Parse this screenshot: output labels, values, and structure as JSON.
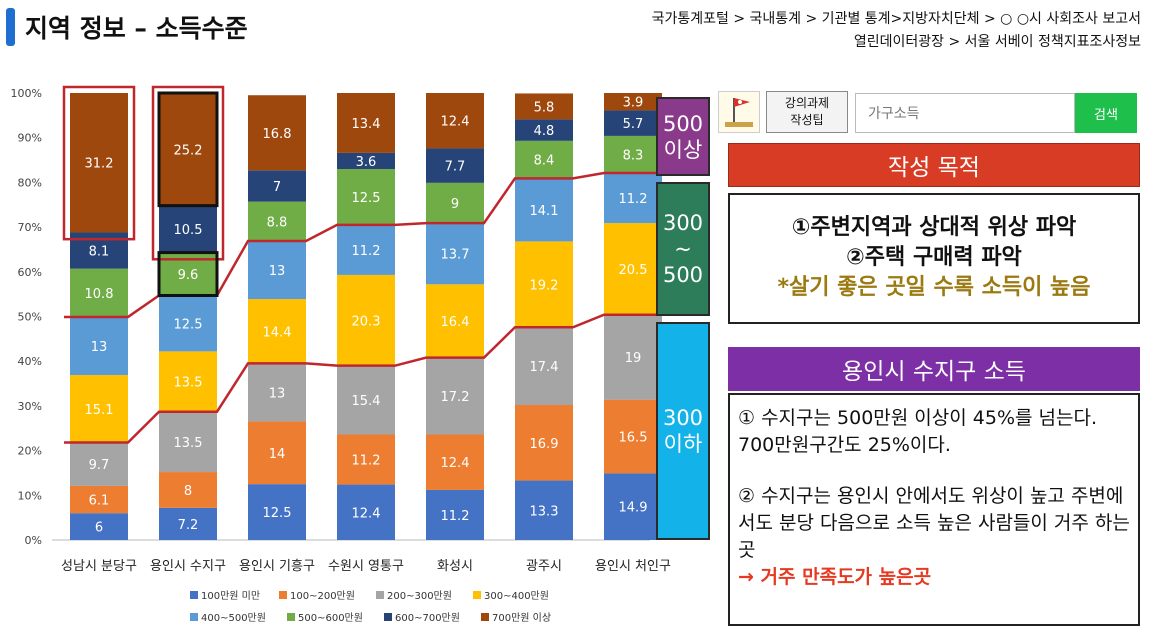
{
  "header": {
    "title": "지역 정보 – 소득수준",
    "breadcrumb_1": "국가통계포털 > 국내통계 > 기관별 통계>지방자치단체 > ○ ○시 사회조사 보고서",
    "breadcrumb_2": "열린데이터광장 > 서울 서베이 정책지표조사정보"
  },
  "side_labels": {
    "upper": [
      "500",
      "이상"
    ],
    "middle": [
      "300",
      "~",
      "500"
    ],
    "lower": [
      "300",
      "이하"
    ]
  },
  "toolbar": {
    "tip_line1": "강의과제",
    "tip_line2": "작성팁",
    "search_placeholder": "가구소득",
    "search_button": "검색"
  },
  "purpose": {
    "header": "작성 목적",
    "line1": "①주변지역과 상대적 위상 파악",
    "line2": "②주택 구매력 파악",
    "line3": "*살기 좋은 곳일 수록 소득이 높음"
  },
  "suji": {
    "header": "용인시 수지구 소득",
    "p1": "① 수지구는 500만원 이상이  45%를 넘는다. 700만원구간도 25%이다.",
    "p2": "② 수지구는  용인시 안에서도 위상이 높고    주변에서도 분당 다음으로 소득 높은 사람들이 거주 하는 곳",
    "p3": "→ 거주 만족도가 높은곳"
  },
  "colors": {
    "accent_blue": "#1e6fd0",
    "red_line": "#c0272d",
    "search_green": "#1fbf4b",
    "purpose_red": "#d83c25",
    "suji_purple": "#7d2fa6"
  },
  "chart_data": {
    "type": "bar",
    "stacked": true,
    "ylim": [
      0,
      100
    ],
    "yticks": [
      "0%",
      "10%",
      "20%",
      "30%",
      "40%",
      "50%",
      "60%",
      "70%",
      "80%",
      "90%",
      "100%"
    ],
    "categories": [
      "성남시 분당구",
      "용인시 수지구",
      "용인시 기흥구",
      "수원시 영통구",
      "화성시",
      "광주시",
      "용인시 처인구"
    ],
    "series": [
      {
        "name": "100만원 미만",
        "color": "#4472c4",
        "values": [
          6,
          7.2,
          12.5,
          12.4,
          11.2,
          13.3,
          14.9
        ]
      },
      {
        "name": "100~200만원",
        "color": "#ed7d31",
        "values": [
          6.1,
          8,
          14,
          11.2,
          12.4,
          16.9,
          16.5
        ]
      },
      {
        "name": "200~300만원",
        "color": "#a5a5a5",
        "values": [
          9.7,
          13.5,
          13,
          15.4,
          17.2,
          17.4,
          19
        ]
      },
      {
        "name": "300~400만원",
        "color": "#ffc000",
        "values": [
          15.1,
          13.5,
          14.4,
          20.3,
          16.4,
          19.2,
          20.5
        ]
      },
      {
        "name": "400~500만원",
        "color": "#5b9bd5",
        "values": [
          13,
          12.5,
          13,
          11.2,
          13.7,
          14.1,
          11.2
        ]
      },
      {
        "name": "500~600만원",
        "color": "#70ad47",
        "values": [
          10.8,
          9.6,
          8.8,
          12.5,
          9,
          8.4,
          8.3
        ]
      },
      {
        "name": "600~700만원",
        "color": "#264478",
        "values": [
          8.1,
          10.5,
          7,
          3.6,
          7.7,
          4.8,
          5.7
        ]
      },
      {
        "name": "700만원 이상",
        "color": "#9e480e",
        "values": [
          31.2,
          25.2,
          16.8,
          13.4,
          12.4,
          5.8,
          3.9
        ]
      }
    ],
    "legend_position": "bottom",
    "annotations": {
      "threshold_lines": [
        "300만원 boundary",
        "500만원 boundary"
      ],
      "highlighted_categories": [
        "성남시 분당구",
        "용인시 수지구"
      ]
    }
  }
}
